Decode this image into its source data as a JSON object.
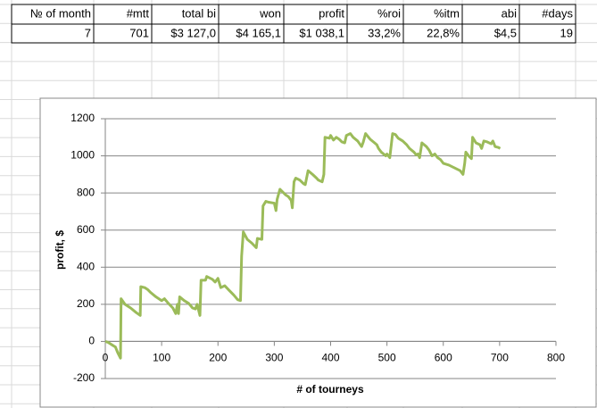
{
  "table": {
    "header": [
      "№ of month",
      "#mtt",
      "total bi",
      "won",
      "profit",
      "%roi",
      "%itm",
      "abi",
      "#days"
    ],
    "rows": [
      [
        "7",
        "701",
        "$3 127,0",
        "$4 165,1",
        "$1 038,1",
        "33,2%",
        "22,8%",
        "$4,5",
        "19"
      ]
    ]
  },
  "chart_data": {
    "type": "line",
    "xlabel": "# of tourneys",
    "ylabel": "profit, $",
    "x": [
      0,
      5,
      10,
      18,
      22,
      27,
      28,
      35,
      45,
      55,
      62,
      63,
      70,
      75,
      80,
      90,
      100,
      105,
      112,
      120,
      125,
      128,
      130,
      132,
      140,
      148,
      155,
      160,
      163,
      168,
      170,
      178,
      180,
      190,
      195,
      200,
      205,
      212,
      220,
      228,
      235,
      240,
      242,
      245,
      252,
      260,
      268,
      270,
      278,
      280,
      285,
      290,
      300,
      303,
      305,
      310,
      320,
      325,
      330,
      332,
      335,
      338,
      345,
      352,
      355,
      360,
      368,
      375,
      378,
      385,
      388,
      390,
      398,
      400,
      405,
      410,
      415,
      420,
      425,
      428,
      435,
      440,
      448,
      455,
      458,
      462,
      470,
      478,
      482,
      485,
      490,
      498,
      500,
      505,
      510,
      515,
      520,
      528,
      535,
      540,
      548,
      552,
      555,
      558,
      562,
      570,
      575,
      580,
      585,
      590,
      595,
      600,
      610,
      620,
      630,
      635,
      638,
      640,
      645,
      650,
      652,
      658,
      665,
      668,
      672,
      678,
      685,
      688,
      692,
      698,
      701
    ],
    "series": [
      {
        "name": "profit",
        "color": "#9bbb59",
        "values": [
          0,
          -5,
          -15,
          -30,
          -60,
          -90,
          230,
          200,
          180,
          155,
          140,
          295,
          290,
          280,
          265,
          240,
          220,
          230,
          205,
          180,
          150,
          200,
          150,
          240,
          220,
          205,
          180,
          175,
          200,
          140,
          330,
          330,
          350,
          335,
          320,
          340,
          290,
          300,
          275,
          250,
          225,
          220,
          460,
          590,
          550,
          530,
          505,
          555,
          550,
          730,
          755,
          750,
          745,
          705,
          765,
          820,
          790,
          780,
          760,
          720,
          860,
          880,
          870,
          850,
          845,
          920,
          900,
          880,
          870,
          860,
          900,
          1100,
          1095,
          1110,
          1085,
          1100,
          1090,
          1075,
          1070,
          1110,
          1120,
          1100,
          1080,
          1050,
          1075,
          1120,
          1090,
          1070,
          1060,
          1040,
          1020,
          1000,
          1010,
          990,
          1120,
          1115,
          1095,
          1080,
          1060,
          1040,
          1020,
          1005,
          1010,
          990,
          1070,
          1050,
          1030,
          1000,
          1010,
          990,
          980,
          960,
          950,
          935,
          920,
          900,
          960,
          1020,
          1000,
          985,
          1100,
          1070,
          1060,
          1040,
          1080,
          1075,
          1065,
          1080,
          1050,
          1045,
          1040
        ]
      }
    ],
    "xlim": [
      0,
      800
    ],
    "xticks": [
      0,
      100,
      200,
      300,
      400,
      500,
      600,
      700,
      800
    ],
    "ylim": [
      -200,
      1200
    ],
    "yticks": [
      -200,
      0,
      200,
      400,
      600,
      800,
      1000,
      1200
    ],
    "grid": true
  }
}
